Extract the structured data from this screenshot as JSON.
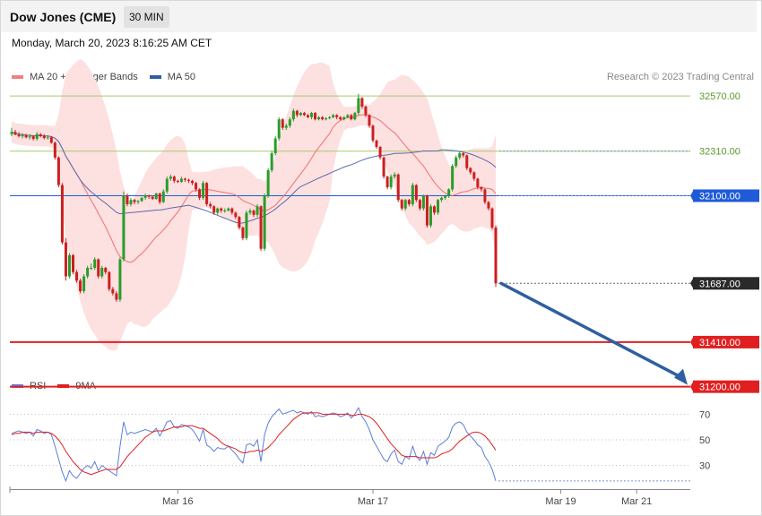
{
  "header": {
    "title": "Dow Jones (CME)",
    "timeframe": "30 MIN",
    "datetime": "Monday, March 20, 2023 8:16:25 AM CET",
    "credit": "Research © 2023 Trading Central"
  },
  "colors": {
    "bull": "#2a9c2a",
    "bear": "#cc1f1f",
    "bollinger_fill": "#fde0e0",
    "ma20": "#f07070",
    "ma50": "#5a6aa8",
    "level_green": "#a6cc6e",
    "level_blue": "#1f5bd6",
    "level_red": "#e02020",
    "rsi": "#5b7fd9",
    "rsi_ma": "#e02020",
    "arrow": "#2f5fa0"
  },
  "chart_data": [
    {
      "type": "candlestick",
      "title": "",
      "legend": [
        {
          "name": "MA 20 + Bollinger Bands",
          "color": "#f08080"
        },
        {
          "name": "MA 50",
          "color": "#2f5fa0"
        }
      ],
      "x_ticks": [
        {
          "label": "Mar 16",
          "index": 46
        },
        {
          "label": "Mar 17",
          "index": 100
        },
        {
          "label": "Mar 19",
          "index": 152
        },
        {
          "label": "Mar 21",
          "index": 173
        }
      ],
      "horizontal_levels": [
        {
          "value": 32570,
          "label": "32570.00",
          "style": "green"
        },
        {
          "value": 32310,
          "label": "32310.00",
          "style": "green"
        },
        {
          "value": 32100,
          "label": "32100.00",
          "style": "blue"
        },
        {
          "value": 31410,
          "label": "31410.00",
          "style": "red"
        },
        {
          "value": 31200,
          "label": "31200.00",
          "style": "red"
        }
      ],
      "last_price": {
        "value": 31687,
        "label": "31687.00"
      },
      "forecast_arrow": {
        "from_value": 31687,
        "to_value": 31200
      },
      "ylim": [
        31150,
        32750
      ],
      "close": [
        32400,
        32388,
        32380,
        32385,
        32375,
        32380,
        32368,
        32390,
        32382,
        32372,
        32375,
        32350,
        32280,
        32150,
        31880,
        31720,
        31820,
        31740,
        31700,
        31650,
        31720,
        31760,
        31760,
        31800,
        31720,
        31760,
        31740,
        31660,
        31640,
        31610,
        31800,
        32100,
        32060,
        32080,
        32070,
        32075,
        32090,
        32100,
        32095,
        32085,
        32110,
        32070,
        32120,
        32180,
        32190,
        32170,
        32165,
        32180,
        32175,
        32170,
        32160,
        32130,
        32090,
        32160,
        32060,
        32050,
        32020,
        32040,
        32030,
        32030,
        32040,
        32020,
        32000,
        31950,
        31900,
        32020,
        32030,
        32010,
        32050,
        31850,
        32100,
        32220,
        32300,
        32370,
        32460,
        32420,
        32430,
        32460,
        32500,
        32480,
        32490,
        32480,
        32470,
        32490,
        32460,
        32470,
        32460,
        32465,
        32470,
        32480,
        32470,
        32460,
        32470,
        32480,
        32460,
        32490,
        32560,
        32520,
        32480,
        32430,
        32360,
        32330,
        32280,
        32190,
        32140,
        32190,
        32200,
        32080,
        32040,
        32080,
        32060,
        32150,
        32080,
        32040,
        32100,
        31960,
        32050,
        32020,
        32080,
        32090,
        32100,
        32130,
        32240,
        32280,
        32300,
        32290,
        32230,
        32210,
        32180,
        32140,
        32130,
        32070,
        32040,
        31950,
        31687
      ],
      "open": [
        32390,
        32400,
        32388,
        32380,
        32385,
        32375,
        32380,
        32368,
        32390,
        32382,
        32372,
        32375,
        32350,
        32280,
        32150,
        31880,
        31720,
        31820,
        31740,
        31700,
        31650,
        31720,
        31760,
        31760,
        31800,
        31720,
        31760,
        31740,
        31660,
        31640,
        31610,
        31800,
        32100,
        32060,
        32080,
        32070,
        32075,
        32090,
        32100,
        32095,
        32085,
        32110,
        32070,
        32120,
        32180,
        32190,
        32170,
        32165,
        32180,
        32175,
        32170,
        32160,
        32130,
        32090,
        32160,
        32060,
        32050,
        32020,
        32040,
        32030,
        32030,
        32040,
        32020,
        32000,
        31950,
        31900,
        32020,
        32030,
        32010,
        32050,
        31850,
        32100,
        32220,
        32300,
        32370,
        32460,
        32420,
        32430,
        32460,
        32500,
        32480,
        32490,
        32480,
        32470,
        32490,
        32460,
        32470,
        32460,
        32465,
        32470,
        32480,
        32470,
        32460,
        32470,
        32480,
        32460,
        32490,
        32560,
        32520,
        32480,
        32430,
        32360,
        32330,
        32280,
        32190,
        32140,
        32190,
        32200,
        32080,
        32040,
        32080,
        32060,
        32150,
        32080,
        32040,
        32100,
        31960,
        32050,
        32020,
        32080,
        32090,
        32100,
        32130,
        32240,
        32280,
        32300,
        32290,
        32230,
        32210,
        32180,
        32140,
        32130,
        32070,
        32040,
        31950
      ],
      "high": [
        32420,
        32410,
        32400,
        32395,
        32392,
        32390,
        32385,
        32400,
        32395,
        32390,
        32385,
        32380,
        32355,
        32285,
        32160,
        31900,
        31830,
        31825,
        31750,
        31710,
        31730,
        31770,
        31780,
        31810,
        31805,
        31770,
        31765,
        31745,
        31670,
        31650,
        31810,
        32120,
        32110,
        32090,
        32085,
        32080,
        32095,
        32110,
        32105,
        32100,
        32115,
        32115,
        32130,
        32190,
        32200,
        32195,
        32175,
        32190,
        32185,
        32180,
        32175,
        32165,
        32135,
        32170,
        32165,
        32070,
        32055,
        32045,
        32045,
        32040,
        32045,
        32045,
        32025,
        32005,
        31955,
        32030,
        32040,
        32035,
        32060,
        32055,
        32110,
        32230,
        32310,
        32380,
        32470,
        32465,
        32440,
        32470,
        32510,
        32505,
        32495,
        32495,
        32485,
        32495,
        32495,
        32475,
        32475,
        32470,
        32475,
        32485,
        32485,
        32475,
        32475,
        32485,
        32485,
        32495,
        32580,
        32565,
        32525,
        32485,
        32435,
        32365,
        32335,
        32285,
        32195,
        32200,
        32210,
        32205,
        32085,
        32085,
        32085,
        32160,
        32155,
        32085,
        32105,
        32105,
        32060,
        32055,
        32085,
        32095,
        32105,
        32135,
        32250,
        32290,
        32310,
        32305,
        32295,
        32235,
        32215,
        32185,
        32145,
        32135,
        32075,
        32045,
        31960
      ],
      "low": [
        32380,
        32385,
        32375,
        32370,
        32370,
        32365,
        32360,
        32360,
        32375,
        32365,
        32365,
        32345,
        32270,
        32140,
        31870,
        31700,
        31710,
        31730,
        31690,
        31640,
        31640,
        31710,
        31750,
        31750,
        31710,
        31710,
        31730,
        31650,
        31630,
        31600,
        31600,
        31790,
        32050,
        32050,
        32060,
        32060,
        32070,
        32080,
        32085,
        32080,
        32080,
        32060,
        32065,
        32110,
        32170,
        32160,
        32160,
        32160,
        32165,
        32160,
        32150,
        32120,
        32080,
        32080,
        32050,
        32040,
        32010,
        32010,
        32020,
        32020,
        32025,
        32010,
        31990,
        31940,
        31890,
        31890,
        32010,
        32000,
        32000,
        31840,
        31840,
        32090,
        32210,
        32290,
        32360,
        32410,
        32410,
        32420,
        32450,
        32470,
        32475,
        32475,
        32465,
        32460,
        32455,
        32455,
        32455,
        32455,
        32460,
        32465,
        32460,
        32455,
        32455,
        32465,
        32455,
        32455,
        32480,
        32510,
        32470,
        32420,
        32350,
        32320,
        32270,
        32180,
        32130,
        32130,
        32180,
        32070,
        32030,
        32030,
        32050,
        32050,
        32070,
        32030,
        32030,
        31950,
        31950,
        32010,
        32010,
        32070,
        32080,
        32090,
        32120,
        32230,
        32270,
        32280,
        32220,
        32200,
        32170,
        32130,
        32120,
        32060,
        32030,
        31940,
        31670
      ]
    },
    {
      "type": "line",
      "title": "",
      "legend": [
        {
          "name": "RSI",
          "color": "#5b7fd9"
        },
        {
          "name": "9MA",
          "color": "#e02020"
        }
      ],
      "y_ticks": [
        70,
        50,
        30
      ],
      "ylim": [
        13,
        80
      ],
      "series": [
        {
          "name": "RSI",
          "values": [
            55,
            56,
            57,
            56,
            55,
            56,
            53,
            58,
            57,
            55,
            56,
            54,
            45,
            35,
            25,
            18,
            26,
            22,
            20,
            24,
            28,
            30,
            28,
            33,
            26,
            30,
            28,
            26,
            24,
            22,
            45,
            64,
            54,
            56,
            55,
            56,
            57,
            58,
            57,
            56,
            59,
            53,
            58,
            64,
            65,
            60,
            59,
            62,
            61,
            60,
            58,
            54,
            49,
            58,
            46,
            44,
            41,
            44,
            43,
            43,
            45,
            42,
            39,
            35,
            32,
            46,
            47,
            45,
            50,
            33,
            54,
            63,
            68,
            71,
            74,
            70,
            71,
            72,
            73,
            71,
            72,
            71,
            70,
            72,
            68,
            69,
            68,
            69,
            70,
            71,
            70,
            68,
            69,
            71,
            67,
            70,
            75,
            68,
            64,
            58,
            50,
            45,
            40,
            35,
            33,
            39,
            42,
            33,
            31,
            37,
            35,
            45,
            37,
            34,
            41,
            31,
            40,
            38,
            45,
            47,
            49,
            52,
            60,
            63,
            64,
            62,
            56,
            53,
            50,
            46,
            44,
            37,
            33,
            27,
            18
          ]
        },
        {
          "name": "9MA",
          "values": [
            54,
            55,
            55,
            56,
            56,
            56,
            55,
            56,
            56,
            56,
            56,
            55,
            53,
            50,
            46,
            41,
            37,
            33,
            30,
            27,
            25,
            24,
            23,
            24,
            25,
            26,
            27,
            27,
            27,
            27,
            29,
            33,
            37,
            40,
            43,
            46,
            49,
            52,
            54,
            56,
            57,
            57,
            57,
            58,
            59,
            60,
            60,
            60,
            61,
            61,
            61,
            60,
            59,
            59,
            57,
            55,
            53,
            51,
            48,
            46,
            45,
            44,
            43,
            41,
            40,
            40,
            41,
            41,
            42,
            41,
            42,
            44,
            47,
            50,
            54,
            57,
            60,
            63,
            66,
            68,
            70,
            71,
            71,
            71,
            71,
            71,
            70,
            70,
            70,
            70,
            70,
            70,
            70,
            70,
            69,
            69,
            70,
            70,
            69,
            68,
            66,
            63,
            59,
            55,
            51,
            47,
            44,
            41,
            38,
            37,
            37,
            37,
            37,
            36,
            36,
            36,
            36,
            36,
            37,
            39,
            40,
            41,
            43,
            46,
            49,
            51,
            53,
            55,
            56,
            56,
            55,
            53,
            50,
            46,
            42
          ]
        }
      ]
    }
  ]
}
